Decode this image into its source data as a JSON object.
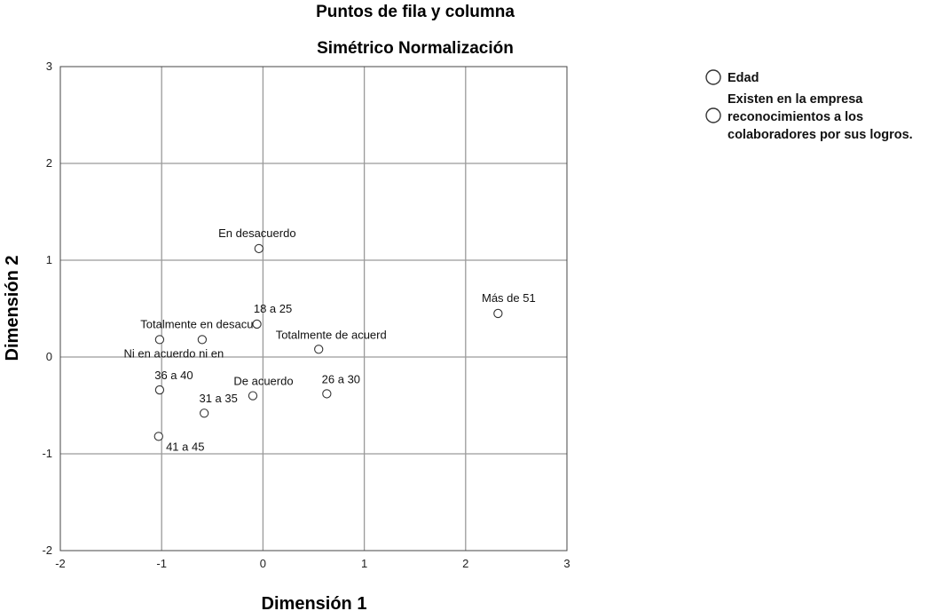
{
  "chart_data": {
    "type": "scatter",
    "title": "Puntos de fila y columna",
    "subtitle": "Simétrico Normalización",
    "xlabel": "Dimensión 1",
    "ylabel": "Dimensión 2",
    "xlim": [
      -2,
      3
    ],
    "ylim": [
      -2,
      3
    ],
    "xticks": [
      -2,
      -1,
      0,
      1,
      2,
      3
    ],
    "yticks": [
      -2,
      -1,
      0,
      1,
      2,
      3
    ],
    "grid": true,
    "legend_position": "top-right",
    "series": [
      {
        "name": "Edad",
        "points": [
          {
            "label": "18 a 25",
            "x": -0.06,
            "y": 0.34
          },
          {
            "label": "26 a 30",
            "x": 0.63,
            "y": -0.38
          },
          {
            "label": "31 a 35",
            "x": -0.58,
            "y": -0.58
          },
          {
            "label": "36 a 40",
            "x": -1.02,
            "y": -0.34
          },
          {
            "label": "41 a 45",
            "x": -1.03,
            "y": -0.82
          },
          {
            "label": "Más de 51",
            "x": 2.32,
            "y": 0.45
          }
        ]
      },
      {
        "name": "Existen en la empresa reconocimientos a los colaboradores por sus logros.",
        "name_lines": [
          "Existen en la empresa",
          "reconocimientos a los",
          "colaboradores por sus logros."
        ],
        "points": [
          {
            "label": "En desacuerdo",
            "x": -0.04,
            "y": 1.12
          },
          {
            "label": "Totalmente en desacu",
            "x": -0.6,
            "y": 0.18
          },
          {
            "label": "Ni en acuerdo ni en",
            "x": -1.02,
            "y": 0.18
          },
          {
            "label": "Totalmente de acuerd",
            "x": 0.55,
            "y": 0.08
          },
          {
            "label": "De acuerdo",
            "x": -0.1,
            "y": -0.4
          }
        ]
      }
    ]
  }
}
